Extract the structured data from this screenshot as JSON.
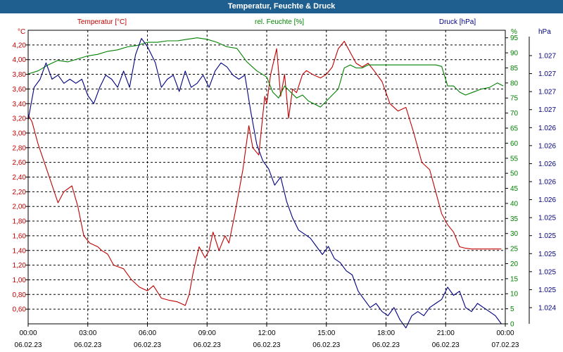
{
  "window": {
    "title": "Temperatur, Feuchte & Druck"
  },
  "chart_data": {
    "type": "line",
    "title": "Temperatur, Feuchte & Druck",
    "x_ticks": [
      {
        "time": "00:00",
        "date": "06.02.23"
      },
      {
        "time": "03:00",
        "date": "06.02.23"
      },
      {
        "time": "06:00",
        "date": "06.02.23"
      },
      {
        "time": "09:00",
        "date": "06.02.23"
      },
      {
        "time": "12:00",
        "date": "06.02.23"
      },
      {
        "time": "15:00",
        "date": "06.02.23"
      },
      {
        "time": "18:00",
        "date": "06.02.23"
      },
      {
        "time": "21:00",
        "date": "06.02.23"
      },
      {
        "time": "00:00",
        "date": "07.02.23"
      }
    ],
    "xlim_hours": [
      0,
      24
    ],
    "grid": true,
    "axes": {
      "temperature": {
        "unit_label": "°C",
        "series_label": "Temperatur [°C]",
        "color": "#c00000",
        "ylim": [
          0.4,
          4.4
        ],
        "ticks": [
          "0,60",
          "0,80",
          "1,00",
          "1,20",
          "1,40",
          "1,60",
          "1,80",
          "2,00",
          "2,20",
          "2,40",
          "2,60",
          "2,80",
          "3,00",
          "3,20",
          "3,40",
          "3,60",
          "3,80",
          "4,00",
          "4,20"
        ]
      },
      "humidity": {
        "unit_label": "%",
        "series_label": "rel. Feuchte [%]",
        "color": "#008000",
        "ylim": [
          0,
          97.5
        ],
        "ticks": [
          "0",
          "5",
          "10",
          "15",
          "20",
          "25",
          "30",
          "35",
          "40",
          "45",
          "50",
          "55",
          "60",
          "65",
          "70",
          "75",
          "80",
          "85",
          "90",
          "95"
        ]
      },
      "pressure": {
        "unit_label": "hPa",
        "series_label": "Druck [hPa]",
        "color": "#000080",
        "ylim": [
          1024,
          1027.6
        ],
        "ticks": [
          "1.024",
          "1.025",
          "1.025",
          "1.025",
          "1.025",
          "1.025",
          "1.026",
          "1.026",
          "1.026",
          "1.026",
          "1.026",
          "1.027",
          "1.027",
          "1.027",
          "1.027"
        ]
      }
    },
    "series": [
      {
        "name": "Temperatur [°C]",
        "axis": "temperature",
        "color": "#c00000",
        "x": [
          0,
          0.2,
          0.5,
          1.0,
          1.5,
          1.8,
          2.2,
          2.5,
          2.8,
          3.1,
          3.5,
          3.7,
          4.0,
          4.3,
          4.8,
          5.2,
          5.6,
          6.0,
          6.3,
          6.7,
          7.1,
          7.5,
          7.9,
          8.1,
          8.3,
          8.6,
          8.9,
          9.1,
          9.3,
          9.6,
          9.9,
          10.1,
          10.4,
          10.8,
          11.1,
          11.3,
          11.6,
          11.9,
          12.0,
          12.2,
          12.5,
          12.7,
          12.9,
          13.1,
          13.3,
          13.5,
          13.8,
          14.0,
          14.3,
          14.7,
          15.0,
          15.3,
          15.6,
          15.9,
          16.2,
          16.5,
          16.8,
          17.1,
          17.4,
          17.8,
          18.2,
          18.6,
          19.0,
          19.4,
          19.8,
          20.2,
          20.5,
          20.8,
          21.1,
          21.4,
          21.7,
          22.0,
          22.3,
          22.6,
          22.9,
          23.2,
          23.5,
          23.8
        ],
        "values": [
          3.25,
          3.15,
          2.85,
          2.45,
          2.05,
          2.2,
          2.28,
          2.0,
          1.6,
          1.5,
          1.45,
          1.4,
          1.35,
          1.2,
          1.15,
          1.0,
          0.9,
          0.85,
          0.92,
          0.75,
          0.72,
          0.7,
          0.65,
          0.8,
          1.1,
          1.45,
          1.3,
          1.4,
          1.65,
          1.4,
          1.6,
          1.5,
          1.9,
          2.5,
          3.1,
          2.8,
          2.7,
          3.5,
          3.4,
          3.8,
          4.15,
          3.5,
          3.8,
          3.2,
          3.6,
          3.55,
          3.8,
          3.85,
          3.8,
          3.75,
          3.8,
          3.9,
          4.15,
          4.25,
          4.1,
          3.95,
          3.9,
          3.95,
          3.85,
          3.7,
          3.4,
          3.3,
          3.35,
          3.0,
          2.6,
          2.5,
          2.2,
          1.9,
          1.75,
          1.65,
          1.45,
          1.43,
          1.42,
          1.42,
          1.42,
          1.42,
          1.42,
          1.42
        ]
      },
      {
        "name": "rel. Feuchte [%]",
        "axis": "humidity",
        "color": "#008000",
        "x": [
          0,
          0.5,
          1.0,
          1.5,
          2.0,
          2.5,
          3.0,
          3.5,
          4.0,
          4.5,
          5.0,
          5.5,
          6.0,
          6.5,
          7.0,
          7.5,
          8.0,
          8.5,
          9.0,
          9.5,
          10.0,
          10.5,
          11.0,
          11.5,
          12.0,
          12.3,
          12.6,
          12.9,
          13.2,
          13.5,
          13.8,
          14.1,
          14.4,
          14.7,
          15.0,
          15.3,
          15.6,
          15.9,
          16.2,
          16.5,
          16.8,
          17.1,
          17.5,
          18.0,
          18.5,
          19.0,
          19.5,
          20.0,
          20.5,
          20.8,
          21.1,
          21.4,
          21.7,
          22.0,
          22.4,
          22.8,
          23.2,
          23.6,
          23.9
        ],
        "values": [
          83,
          84,
          86,
          87.5,
          87,
          88,
          89,
          89.5,
          90.5,
          91,
          92,
          92.5,
          93.5,
          93.5,
          94,
          94,
          94.5,
          95,
          94.5,
          93.5,
          92,
          91.5,
          87,
          84,
          82,
          77,
          75,
          79,
          77,
          75,
          76,
          74,
          73,
          72,
          74,
          76,
          78,
          85,
          86,
          85,
          85,
          86,
          86,
          86,
          86,
          86,
          86,
          86,
          86,
          85.5,
          79,
          79,
          77,
          76,
          77,
          78,
          78.5,
          80,
          79
        ]
      },
      {
        "name": "Druck [hPa]",
        "axis": "pressure",
        "color": "#000080",
        "x": [
          0,
          0.3,
          0.6,
          0.9,
          1.2,
          1.5,
          1.8,
          2.1,
          2.4,
          2.7,
          3.0,
          3.3,
          3.6,
          3.9,
          4.2,
          4.5,
          4.8,
          5.1,
          5.4,
          5.7,
          6.0,
          6.2,
          6.4,
          6.7,
          7.0,
          7.3,
          7.6,
          7.9,
          8.2,
          8.5,
          8.8,
          9.1,
          9.4,
          9.7,
          10.0,
          10.3,
          10.6,
          10.9,
          11.2,
          11.5,
          11.8,
          12.1,
          12.4,
          12.7,
          13.0,
          13.3,
          13.6,
          13.9,
          14.2,
          14.5,
          14.8,
          15.1,
          15.4,
          15.7,
          16.0,
          16.3,
          16.6,
          16.9,
          17.2,
          17.5,
          17.8,
          18.1,
          18.4,
          18.7,
          19.0,
          19.3,
          19.6,
          19.9,
          20.2,
          20.5,
          20.8,
          21.1,
          21.4,
          21.7,
          22.0,
          22.3,
          22.6,
          22.9,
          23.2,
          23.5,
          23.8
        ],
        "values": [
          1026.5,
          1026.9,
          1027.0,
          1027.2,
          1027.0,
          1027.05,
          1026.95,
          1027.0,
          1026.95,
          1027.0,
          1026.8,
          1026.7,
          1026.9,
          1027.05,
          1027.0,
          1026.9,
          1027.1,
          1026.9,
          1027.3,
          1027.5,
          1027.4,
          1027.3,
          1027.2,
          1026.9,
          1027.0,
          1027.05,
          1026.85,
          1027.1,
          1026.9,
          1026.95,
          1027.05,
          1026.9,
          1027.1,
          1027.2,
          1027.15,
          1027.05,
          1027.0,
          1027.05,
          1026.6,
          1026.2,
          1026.0,
          1025.9,
          1025.7,
          1025.8,
          1025.5,
          1025.3,
          1025.15,
          1025.1,
          1025.05,
          1024.95,
          1024.85,
          1024.95,
          1024.8,
          1024.75,
          1024.65,
          1024.6,
          1024.4,
          1024.3,
          1024.2,
          1024.25,
          1024.15,
          1024.1,
          1024.2,
          1024.05,
          1023.95,
          1024.1,
          1024.15,
          1024.1,
          1024.2,
          1024.25,
          1024.3,
          1024.45,
          1024.35,
          1024.4,
          1024.2,
          1024.15,
          1024.25,
          1024.2,
          1024.15,
          1024.1,
          1024.0
        ]
      }
    ]
  }
}
